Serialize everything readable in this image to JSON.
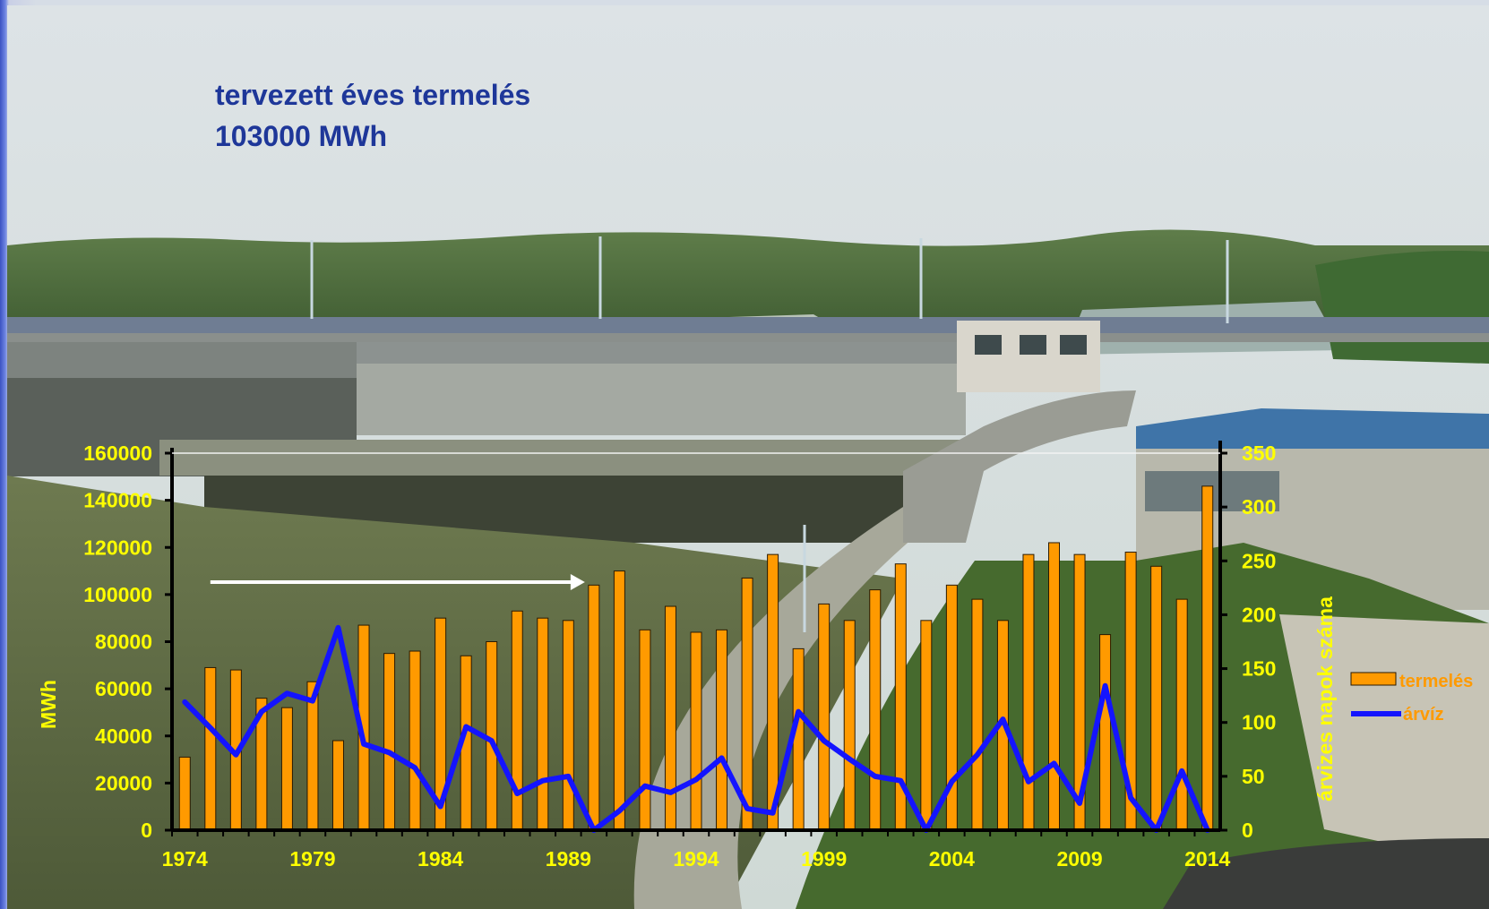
{
  "annotation": {
    "line1": "tervezett éves termelés",
    "line2": "103000 MWh"
  },
  "colors": {
    "bars": "#ff9a00",
    "bar_outline": "#2a1a00",
    "line": "#1414ff",
    "axis_text": "#ffff00",
    "annotation": "#1e3799",
    "arrow": "#ffffff"
  },
  "chart_data": {
    "type": "bar",
    "x": [
      1974,
      1975,
      1976,
      1977,
      1978,
      1979,
      1980,
      1981,
      1982,
      1983,
      1984,
      1985,
      1986,
      1987,
      1988,
      1989,
      1990,
      1991,
      1992,
      1993,
      1994,
      1995,
      1996,
      1997,
      1998,
      1999,
      2000,
      2001,
      2002,
      2003,
      2004,
      2005,
      2006,
      2007,
      2008,
      2009,
      2010,
      2011,
      2012,
      2013,
      2014
    ],
    "x_tick_labels": [
      "1974",
      "1979",
      "1984",
      "1989",
      "1994",
      "1999",
      "2004",
      "2009",
      "2014"
    ],
    "series": [
      {
        "name": "termelés",
        "type": "bar",
        "axis": "left",
        "values": [
          31000,
          69000,
          68000,
          56000,
          52000,
          63000,
          38000,
          87000,
          75000,
          76000,
          90000,
          74000,
          80000,
          93000,
          90000,
          89000,
          104000,
          110000,
          85000,
          95000,
          84000,
          85000,
          107000,
          117000,
          77000,
          96000,
          89000,
          102000,
          113000,
          89000,
          104000,
          98000,
          89000,
          117000,
          122000,
          117000,
          83000,
          118000,
          112000,
          98000,
          146000
        ]
      },
      {
        "name": "árvíz",
        "type": "line",
        "axis": "right",
        "values": [
          119,
          95,
          70,
          110,
          127,
          120,
          188,
          80,
          72,
          58,
          22,
          96,
          83,
          34,
          46,
          50,
          0,
          18,
          41,
          35,
          47,
          67,
          20,
          16,
          110,
          83,
          66,
          50,
          46,
          0,
          45,
          70,
          103,
          45,
          62,
          25,
          134,
          30,
          0,
          55,
          0
        ]
      }
    ],
    "y_left": {
      "label": "MWh",
      "min": 0,
      "max": 160000,
      "ticks": [
        "0",
        "20000",
        "40000",
        "60000",
        "80000",
        "100000",
        "120000",
        "140000",
        "160000"
      ]
    },
    "y_right": {
      "label": "árvizes napok száma",
      "min": 0,
      "max": 350,
      "ticks": [
        "0",
        "50",
        "100",
        "150",
        "200",
        "250",
        "300",
        "350"
      ]
    },
    "legend": {
      "position": "right",
      "entries": [
        "termelés",
        "árvíz"
      ]
    },
    "arrow": {
      "from_year": 1975,
      "to_year": 1990,
      "value": 103000
    }
  }
}
